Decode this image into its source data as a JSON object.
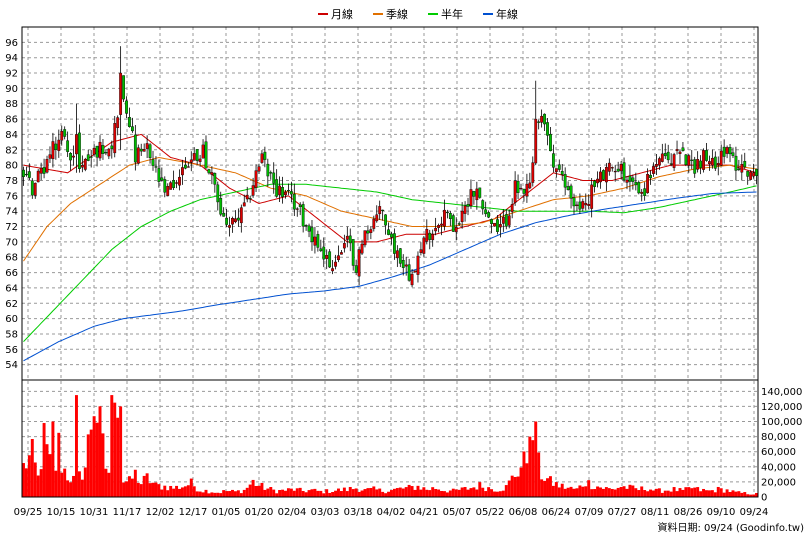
{
  "chart_data": {
    "type": "candlestick",
    "legend": {
      "placement": "top-center",
      "items": [
        {
          "name": "月線",
          "color": "#cc0000"
        },
        {
          "name": "季線",
          "color": "#e07000"
        },
        {
          "name": "半年",
          "color": "#00cc00"
        },
        {
          "name": "年線",
          "color": "#0050d0"
        }
      ]
    },
    "price_axis": {
      "range": [
        52,
        98
      ],
      "ticks": [
        54,
        56,
        58,
        60,
        62,
        64,
        66,
        68,
        70,
        72,
        74,
        76,
        78,
        80,
        82,
        84,
        86,
        88,
        90,
        92,
        94,
        96
      ],
      "side": "left",
      "grid": true
    },
    "volume_axis": {
      "range": [
        0,
        155000
      ],
      "ticks": [
        0,
        20000,
        40000,
        60000,
        80000,
        100000,
        120000,
        140000
      ],
      "tick_labels": [
        "0",
        "20,000",
        "40,000",
        "60,000",
        "80,000",
        "100,000",
        "120,000",
        "140,000"
      ],
      "side": "right",
      "grid": true
    },
    "x_labels": [
      "09/25",
      "10/15",
      "10/31",
      "11/17",
      "12/02",
      "12/17",
      "01/05",
      "01/20",
      "02/04",
      "03/03",
      "03/18",
      "04/02",
      "04/21",
      "05/07",
      "05/22",
      "06/08",
      "06/24",
      "07/09",
      "07/27",
      "08/11",
      "08/26",
      "09/10",
      "09/24"
    ],
    "candle_color_up": "#dd0000",
    "candle_color_down": "#00bb00",
    "volume_color": "#ff0000",
    "anchors": [
      [
        0,
        79
      ],
      [
        3,
        77
      ],
      [
        6,
        79
      ],
      [
        10,
        82
      ],
      [
        13,
        84
      ],
      [
        17,
        81
      ],
      [
        20,
        80
      ],
      [
        25,
        82
      ],
      [
        30,
        83
      ],
      [
        33,
        89
      ],
      [
        36,
        86
      ],
      [
        38,
        81
      ],
      [
        42,
        82
      ],
      [
        45,
        79
      ],
      [
        48,
        76
      ],
      [
        52,
        78
      ],
      [
        55,
        80
      ],
      [
        58,
        81
      ],
      [
        61,
        82
      ],
      [
        64,
        78
      ],
      [
        67,
        74
      ],
      [
        70,
        72
      ],
      [
        73,
        73
      ],
      [
        76,
        75
      ],
      [
        79,
        79
      ],
      [
        81,
        81
      ],
      [
        83,
        79
      ],
      [
        86,
        77
      ],
      [
        89,
        76
      ],
      [
        92,
        75
      ],
      [
        95,
        73
      ],
      [
        98,
        71
      ],
      [
        101,
        69
      ],
      [
        104,
        67
      ],
      [
        107,
        68
      ],
      [
        110,
        70
      ],
      [
        113,
        67
      ],
      [
        116,
        71
      ],
      [
        119,
        73
      ],
      [
        122,
        74
      ],
      [
        125,
        70
      ],
      [
        128,
        68
      ],
      [
        131,
        66
      ],
      [
        134,
        68
      ],
      [
        137,
        71
      ],
      [
        140,
        72
      ],
      [
        143,
        74
      ],
      [
        146,
        72
      ],
      [
        149,
        73
      ],
      [
        152,
        77
      ],
      [
        155,
        76
      ],
      [
        158,
        73
      ],
      [
        161,
        71
      ],
      [
        164,
        73
      ],
      [
        167,
        77
      ],
      [
        170,
        76
      ],
      [
        172,
        77
      ],
      [
        174,
        83
      ],
      [
        176,
        86
      ],
      [
        178,
        84
      ],
      [
        180,
        80
      ],
      [
        183,
        78
      ],
      [
        186,
        76
      ],
      [
        189,
        74
      ],
      [
        192,
        76
      ],
      [
        195,
        78
      ],
      [
        198,
        79
      ],
      [
        201,
        80
      ],
      [
        204,
        79
      ],
      [
        207,
        78
      ],
      [
        210,
        76
      ],
      [
        213,
        79
      ],
      [
        216,
        81
      ],
      [
        219,
        80
      ],
      [
        222,
        82
      ],
      [
        225,
        81
      ],
      [
        228,
        80
      ],
      [
        231,
        81
      ],
      [
        234,
        80
      ],
      [
        237,
        82
      ],
      [
        240,
        81
      ],
      [
        243,
        80
      ],
      [
        245,
        80
      ],
      [
        247,
        79
      ],
      [
        249,
        78
      ]
    ],
    "volume_anchors": [
      [
        0,
        40000
      ],
      [
        3,
        55000
      ],
      [
        5,
        25000
      ],
      [
        7,
        75000
      ],
      [
        10,
        30000
      ],
      [
        12,
        50000
      ],
      [
        15,
        28000
      ],
      [
        18,
        20000
      ],
      [
        21,
        40000
      ],
      [
        24,
        130000
      ],
      [
        26,
        90000
      ],
      [
        28,
        40000
      ],
      [
        30,
        28000
      ],
      [
        33,
        22000
      ],
      [
        36,
        20000
      ],
      [
        38,
        30000
      ],
      [
        40,
        18000
      ],
      [
        42,
        25000
      ],
      [
        45,
        15000
      ],
      [
        48,
        14000
      ],
      [
        51,
        12000
      ],
      [
        54,
        14000
      ],
      [
        57,
        18000
      ],
      [
        60,
        9000
      ],
      [
        63,
        8000
      ],
      [
        66,
        6000
      ],
      [
        69,
        8000
      ],
      [
        72,
        7000
      ],
      [
        75,
        9000
      ],
      [
        78,
        20000
      ],
      [
        80,
        15000
      ],
      [
        83,
        11000
      ],
      [
        86,
        8000
      ],
      [
        89,
        9000
      ],
      [
        92,
        10000
      ],
      [
        95,
        8000
      ],
      [
        98,
        9000
      ],
      [
        101,
        7000
      ],
      [
        104,
        8000
      ],
      [
        107,
        9000
      ],
      [
        110,
        10000
      ],
      [
        113,
        12000
      ],
      [
        116,
        9000
      ],
      [
        119,
        10000
      ],
      [
        122,
        8000
      ],
      [
        125,
        9000
      ],
      [
        128,
        11000
      ],
      [
        131,
        12000
      ],
      [
        134,
        14000
      ],
      [
        137,
        10000
      ],
      [
        140,
        12000
      ],
      [
        143,
        9000
      ],
      [
        146,
        8000
      ],
      [
        149,
        10000
      ],
      [
        152,
        12000
      ],
      [
        155,
        15000
      ],
      [
        158,
        12000
      ],
      [
        161,
        10000
      ],
      [
        164,
        13000
      ],
      [
        167,
        30000
      ],
      [
        170,
        45000
      ],
      [
        172,
        60000
      ],
      [
        174,
        55000
      ],
      [
        176,
        30000
      ],
      [
        179,
        20000
      ],
      [
        182,
        15000
      ],
      [
        185,
        12000
      ],
      [
        188,
        10000
      ],
      [
        191,
        20000
      ],
      [
        194,
        15000
      ],
      [
        197,
        12000
      ],
      [
        200,
        10000
      ],
      [
        203,
        14000
      ],
      [
        206,
        12000
      ],
      [
        209,
        10000
      ],
      [
        212,
        12000
      ],
      [
        215,
        8000
      ],
      [
        218,
        9000
      ],
      [
        221,
        10000
      ],
      [
        224,
        8000
      ],
      [
        227,
        12000
      ],
      [
        230,
        9000
      ],
      [
        233,
        8000
      ],
      [
        236,
        10000
      ],
      [
        239,
        9000
      ],
      [
        242,
        6000
      ],
      [
        245,
        5000
      ],
      [
        249,
        4000
      ]
    ],
    "spikes": [
      {
        "i": 33,
        "high": 95.5,
        "low": 82,
        "close": 92
      },
      {
        "i": 174,
        "high": 91,
        "low": 80,
        "close": 86
      },
      {
        "i": 18,
        "high": 88,
        "low": 79,
        "close": 84
      }
    ],
    "volume_spikes": [
      {
        "i": 10,
        "v": 100000
      },
      {
        "i": 12,
        "v": 85000
      },
      {
        "i": 18,
        "v": 135000
      },
      {
        "i": 30,
        "v": 135000
      },
      {
        "i": 31,
        "v": 125000
      },
      {
        "i": 32,
        "v": 105000
      },
      {
        "i": 33,
        "v": 120000
      },
      {
        "i": 172,
        "v": 80000
      },
      {
        "i": 174,
        "v": 100000
      }
    ],
    "ma_month": [
      [
        0,
        80
      ],
      [
        15,
        79
      ],
      [
        30,
        83
      ],
      [
        40,
        84
      ],
      [
        50,
        81
      ],
      [
        60,
        80
      ],
      [
        70,
        77
      ],
      [
        80,
        75
      ],
      [
        90,
        76
      ],
      [
        100,
        73
      ],
      [
        110,
        70
      ],
      [
        120,
        70
      ],
      [
        130,
        71
      ],
      [
        140,
        71
      ],
      [
        150,
        72
      ],
      [
        160,
        73
      ],
      [
        170,
        76
      ],
      [
        180,
        79
      ],
      [
        190,
        78
      ],
      [
        200,
        78
      ],
      [
        210,
        79
      ],
      [
        220,
        80
      ],
      [
        230,
        80
      ],
      [
        240,
        80
      ],
      [
        249,
        79
      ]
    ],
    "ma_quarter": [
      [
        0,
        67.5
      ],
      [
        8,
        72
      ],
      [
        16,
        75
      ],
      [
        26,
        77.5
      ],
      [
        36,
        80
      ],
      [
        46,
        81
      ],
      [
        60,
        80
      ],
      [
        72,
        79
      ],
      [
        84,
        77
      ],
      [
        96,
        76
      ],
      [
        108,
        74
      ],
      [
        120,
        73
      ],
      [
        132,
        72
      ],
      [
        144,
        72
      ],
      [
        156,
        72.5
      ],
      [
        168,
        74
      ],
      [
        180,
        75.5
      ],
      [
        192,
        76
      ],
      [
        204,
        77
      ],
      [
        216,
        78.5
      ],
      [
        228,
        79.5
      ],
      [
        240,
        80
      ],
      [
        249,
        79.5
      ]
    ],
    "ma_half": [
      [
        0,
        57
      ],
      [
        10,
        61
      ],
      [
        20,
        65
      ],
      [
        30,
        69
      ],
      [
        40,
        72
      ],
      [
        50,
        74
      ],
      [
        60,
        75.5
      ],
      [
        72,
        76.5
      ],
      [
        84,
        77.5
      ],
      [
        96,
        77.5
      ],
      [
        108,
        77
      ],
      [
        120,
        76.5
      ],
      [
        132,
        75.5
      ],
      [
        144,
        75
      ],
      [
        156,
        74.5
      ],
      [
        168,
        74
      ],
      [
        180,
        74
      ],
      [
        192,
        74
      ],
      [
        204,
        73.8
      ],
      [
        216,
        74.5
      ],
      [
        228,
        75.5
      ],
      [
        240,
        76.5
      ],
      [
        249,
        77.3
      ]
    ],
    "ma_year": [
      [
        0,
        54.5
      ],
      [
        12,
        57
      ],
      [
        24,
        59
      ],
      [
        34,
        60
      ],
      [
        44,
        60.5
      ],
      [
        54,
        61
      ],
      [
        66,
        61.8
      ],
      [
        78,
        62.5
      ],
      [
        90,
        63.2
      ],
      [
        102,
        63.6
      ],
      [
        114,
        64.2
      ],
      [
        126,
        65.5
      ],
      [
        138,
        67
      ],
      [
        150,
        69
      ],
      [
        162,
        71
      ],
      [
        174,
        72.5
      ],
      [
        186,
        73.5
      ],
      [
        198,
        74.3
      ],
      [
        210,
        75
      ],
      [
        222,
        75.7
      ],
      [
        234,
        76.3
      ],
      [
        249,
        76.5
      ]
    ]
  },
  "footer": {
    "source_text": "資料日期: 09/24  (Goodinfo.tw)"
  }
}
